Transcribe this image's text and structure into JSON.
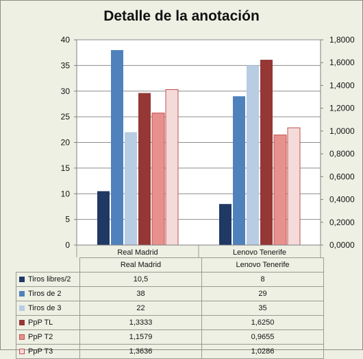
{
  "chart_data": {
    "type": "bar",
    "title": "Detalle de la anotación",
    "categories": [
      "Real Madrid",
      "Lenovo Tenerife"
    ],
    "y_left": {
      "min": 0,
      "max": 40,
      "ticks": [
        "0",
        "5",
        "10",
        "15",
        "20",
        "25",
        "30",
        "35",
        "40"
      ]
    },
    "y_right": {
      "min": 0,
      "max": 1.8,
      "ticks": [
        "0,0000",
        "0,2000",
        "0,4000",
        "0,6000",
        "0,8000",
        "1,0000",
        "1,2000",
        "1,4000",
        "1,6000",
        "1,8000"
      ]
    },
    "grid": true,
    "legend": "data-table",
    "series": [
      {
        "name": "Tiros libres/2",
        "axis": "left",
        "values": [
          10.5,
          8
        ],
        "labels": [
          "10,5",
          "8"
        ],
        "color": "#1f3864"
      },
      {
        "name": "Tiros de 2",
        "axis": "left",
        "values": [
          38,
          29
        ],
        "labels": [
          "38",
          "29"
        ],
        "color": "#4f81bd"
      },
      {
        "name": "Tiros de 3",
        "axis": "left",
        "values": [
          22,
          35
        ],
        "labels": [
          "22",
          "35"
        ],
        "color": "#b8cce4"
      },
      {
        "name": "PpP TL",
        "axis": "right",
        "values": [
          1.3333,
          1.625
        ],
        "labels": [
          "1,3333",
          "1,6250"
        ],
        "color": "#953735"
      },
      {
        "name": "PpP T2",
        "axis": "right",
        "values": [
          1.1579,
          0.9655
        ],
        "labels": [
          "1,1579",
          "0,9655"
        ],
        "color": "#e6918e",
        "border": "#c0504d"
      },
      {
        "name": "PpP T3",
        "axis": "right",
        "values": [
          1.3636,
          1.0286
        ],
        "labels": [
          "1,3636",
          "1,0286"
        ],
        "color": "#f5dada",
        "border": "#c0504d"
      }
    ]
  }
}
